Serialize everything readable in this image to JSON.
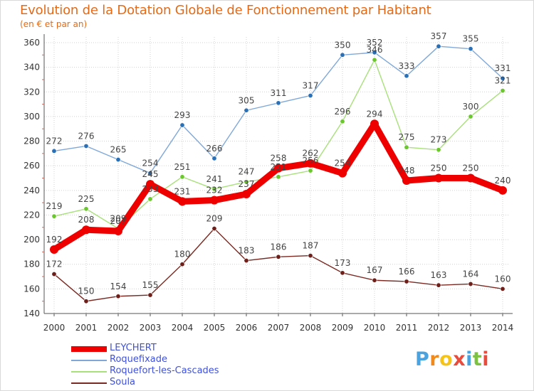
{
  "header": {
    "title": "Evolution de la Dotation Globale de Fonctionnement par Habitant",
    "subtitle": "(en € et par an)"
  },
  "colors": {
    "background": "#ffffff",
    "grid": "#d0d0d0",
    "axis": "#555555",
    "title": "#e66a16"
  },
  "chart_data": {
    "type": "line",
    "title": "Evolution de la Dotation Globale de Fonctionnement par Habitant",
    "subtitle": "(en € et par an)",
    "xlabel": "",
    "ylabel": "",
    "x": [
      2000,
      2001,
      2002,
      2003,
      2004,
      2005,
      2006,
      2007,
      2008,
      2009,
      2010,
      2011,
      2012,
      2013,
      2014
    ],
    "ylim": [
      140,
      360
    ],
    "yticks": [
      140,
      160,
      180,
      200,
      220,
      240,
      260,
      280,
      300,
      320,
      340,
      360
    ],
    "grid": true,
    "legend": "bottom-left",
    "series": [
      {
        "name": "LEYCHERT",
        "color": "#ee0000",
        "point_color": "#ee0000",
        "emphasis": true,
        "values": [
          192,
          208,
          207,
          245,
          231,
          232,
          237,
          258,
          262,
          254,
          294,
          248,
          250,
          250,
          240
        ],
        "labels": [
          "192",
          "208",
          "207",
          "245",
          "231",
          "232",
          "237",
          "258",
          "262",
          "254",
          "294",
          "248",
          "250",
          "250",
          "240"
        ]
      },
      {
        "name": "Roquefixade",
        "color": "#7fa8d9",
        "point_color": "#2b6fb5",
        "emphasis": false,
        "values": [
          272,
          276,
          265,
          254,
          293,
          266,
          305,
          311,
          317,
          350,
          352,
          333,
          357,
          355,
          331
        ],
        "labels": [
          "272",
          "276",
          "265",
          "254",
          "293",
          "266",
          "305",
          "311",
          "317",
          "350",
          "352",
          "333",
          "357",
          "355",
          "331"
        ]
      },
      {
        "name": "Roquefort-les-Cascades",
        "color": "#a8e07a",
        "point_color": "#6cc630",
        "emphasis": false,
        "values": [
          219,
          225,
          209,
          233,
          251,
          241,
          247,
          251,
          256,
          296,
          346,
          275,
          273,
          300,
          321
        ],
        "labels": [
          "219",
          "225",
          "209",
          "233",
          "251",
          "241",
          "247",
          "251",
          "256",
          "296",
          "346",
          "275",
          "273",
          "300",
          "321"
        ]
      },
      {
        "name": "Soula",
        "color": "#7a2a22",
        "point_color": "#6e1f1a",
        "emphasis": false,
        "values": [
          172,
          150,
          154,
          155,
          180,
          209,
          183,
          186,
          187,
          173,
          167,
          166,
          163,
          164,
          160
        ],
        "labels": [
          "172",
          "150",
          "154",
          "155",
          "180",
          "209",
          "183",
          "186",
          "187",
          "173",
          "167",
          "166",
          "163",
          "164",
          "160"
        ]
      }
    ]
  },
  "legend": {
    "items": [
      "LEYCHERT",
      "Roquefixade",
      "Roquefort-les-Cascades",
      "Soula"
    ]
  },
  "logo": {
    "text": "Proxiti",
    "letter_colors": [
      "#4aa3df",
      "#f08a1c",
      "#f6c419",
      "#e84c3d",
      "#4aa3df",
      "#7cc142",
      "#e84c3d"
    ]
  }
}
